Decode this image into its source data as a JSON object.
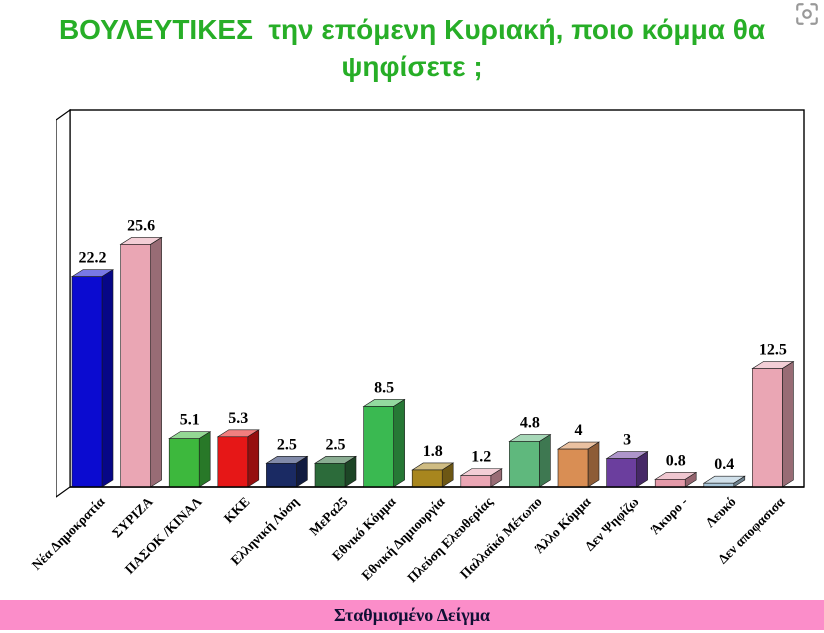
{
  "header": {
    "title_line1": "ΒΟΥΛΕΥΤΙΚΕΣ  την επόμενη Κυριακή, ποιο κόμμα θα",
    "title_line2": "ψηφίσετε ;",
    "title_color": "#27ae27"
  },
  "footer": {
    "label": "Σταθμισμένο Δείγμα",
    "bg_color": "#fb8dc9",
    "text_color": "#101035"
  },
  "icons": {
    "screen_capture": "screen-capture-icon"
  },
  "chart_data": {
    "type": "bar",
    "style": "3d-column",
    "title": "ΒΟΥΛΕΥΤΙΚΕΣ την επόμενη Κυριακή, ποιο κόμμα θα ψηφίσετε ;",
    "xlabel": "",
    "ylabel": "",
    "ylim": [
      0,
      40
    ],
    "grid": false,
    "legend": "none",
    "value_labels_shown": true,
    "annotation": "Σταθμισμένο Δείγμα",
    "categories": [
      "Νέα Δημοκρατία",
      "ΣΥΡΙΖΑ",
      "ΠΑΣΟΚ /ΚΙΝΑΛ",
      "ΚΚΕ",
      "Ελληνική Λύση",
      "ΜεΡα25",
      "Εθνικό Κόμμα",
      "Εθνική Δημιουργία",
      "Πλεύση Ελευθερίας",
      "Παλλαϊκό Μέτωπο",
      "Άλλο Κόμμα",
      "Δεν Ψηφίζω",
      "Άκυρο -",
      "Λευκό",
      "Δεν αποφασισα"
    ],
    "values": [
      22.2,
      25.6,
      5.1,
      5.3,
      2.5,
      2.5,
      8.5,
      1.8,
      1.2,
      4.8,
      4,
      3,
      0.8,
      0.4,
      12.5
    ],
    "bar_colors": [
      "#0b0bd0",
      "#eaa6b4",
      "#3db83d",
      "#e61717",
      "#1a2a63",
      "#2c6b3a",
      "#3ab951",
      "#a8861e",
      "#eaa6b4",
      "#5fb87d",
      "#d98e54",
      "#6b3e9e",
      "#e49aa9",
      "#a9c6d9",
      "#eaa6b4"
    ],
    "value_label_color": "#000000"
  }
}
